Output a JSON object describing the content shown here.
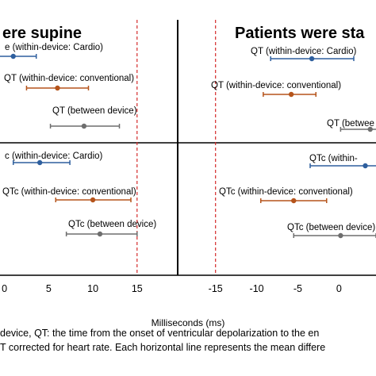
{
  "chart_data": [
    {
      "type": "scatter",
      "panel": "left",
      "title": "ere supine",
      "xlim": [
        -0.5,
        19.5
      ],
      "xticks": [
        0,
        5,
        10,
        15
      ],
      "tick_labels": [
        "0",
        "5",
        "10",
        "15"
      ],
      "reference_line": 15,
      "series": [
        {
          "name": "QT (within-device: Cardio)",
          "color": "#2e5f9e",
          "mean": 1.0,
          "low": -0.8,
          "high": 3.6
        },
        {
          "name": "QT (within-device: conventional)",
          "color": "#b5541b",
          "mean": 6.0,
          "low": 2.5,
          "high": 9.5
        },
        {
          "name": "QT (between device)",
          "color": "#6e6e6e",
          "mean": 9.0,
          "low": 5.2,
          "high": 13.0
        },
        {
          "name": "QTc (within-device: Cardio)",
          "color": "#2e5f9e",
          "mean": 4.0,
          "low": 1.0,
          "high": 7.4
        },
        {
          "name": "QTc (within-device: conventional)",
          "color": "#b5541b",
          "mean": 10.0,
          "low": 5.8,
          "high": 14.3
        },
        {
          "name": "QTc (between device)",
          "color": "#6e6e6e",
          "mean": 10.8,
          "low": 7.0,
          "high": 15.0
        }
      ]
    },
    {
      "type": "scatter",
      "panel": "right",
      "title": "Patients were sta",
      "xlim": [
        -19.5,
        4.5
      ],
      "xticks": [
        -15,
        -10,
        -5,
        0
      ],
      "tick_labels": [
        "-15",
        "-10",
        "-5",
        "0"
      ],
      "reference_line": -15,
      "series": [
        {
          "name": "QT (within-device: Cardio)",
          "color": "#2e5f9e",
          "mean": -3.3,
          "low": -8.3,
          "high": 1.8
        },
        {
          "name": "QT (within-device: conventional)",
          "color": "#b5541b",
          "mean": -5.8,
          "low": -9.2,
          "high": -2.8
        },
        {
          "name": "QT (between device)",
          "color": "#6e6e6e",
          "mean": 3.8,
          "low": 0.2,
          "high": 6.0
        },
        {
          "name": "QTc (within-device: Cardio)",
          "color": "#2e5f9e",
          "mean": 3.2,
          "low": -3.5,
          "high": 8.0
        },
        {
          "name": "QTc (within-device: conventional)",
          "color": "#b5541b",
          "mean": -5.5,
          "low": -9.5,
          "high": -1.5
        },
        {
          "name": "QTc (between device)",
          "color": "#6e6e6e",
          "mean": 0.2,
          "low": -5.5,
          "high": 4.5
        }
      ]
    }
  ],
  "labels": {
    "left": [
      "e (within-device: Cardio)",
      "QT (within-device: conventional)",
      "QT (between device)",
      "c (within-device: Cardio)",
      "QTc (within-device: conventional)",
      "QTc (between device)"
    ],
    "right": [
      "QT (within-device: Cardio)",
      "QT (within-device: conventional)",
      "QT (betwee",
      "QTc (within-",
      "QTc (within-device: conventional)",
      "QTc (between device)"
    ]
  },
  "xlabel": "Milliseconds (ms)",
  "caption": [
    "device, QT: the time from the onset of ventricular depolarization to the en",
    "T corrected for heart rate. Each horizontal line represents the mean differe"
  ],
  "colors": {
    "cardio": "#2e5f9e",
    "conventional": "#b5541b",
    "between": "#6e6e6e",
    "reference": "#d42a2a",
    "frame": "#000000"
  }
}
